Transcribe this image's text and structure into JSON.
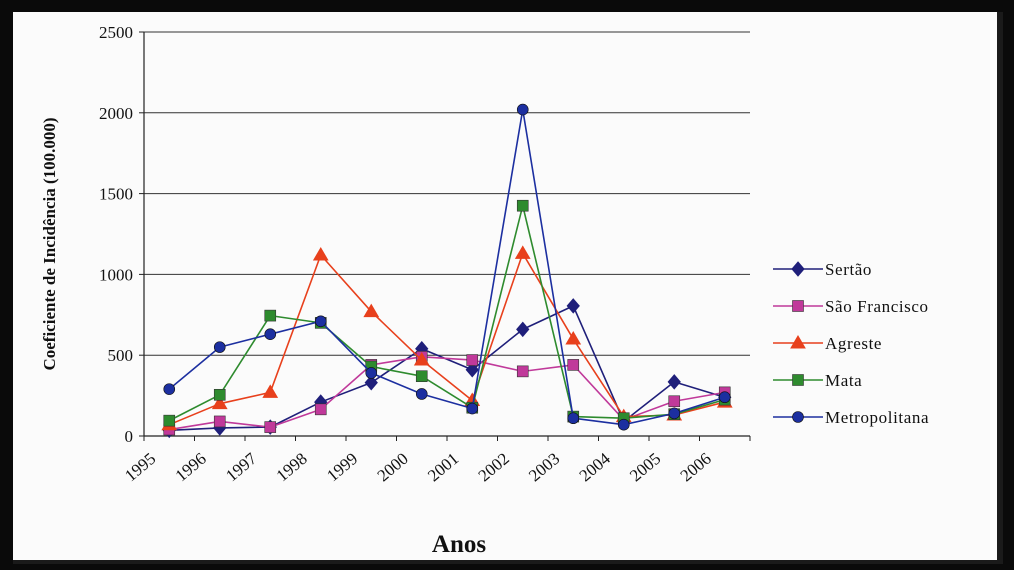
{
  "chart_data": {
    "type": "line",
    "title": "",
    "xlabel": "Anos",
    "ylabel": "Coeficiente de Incidência (100.000)",
    "ylim": [
      0,
      2500
    ],
    "yticks": [
      0,
      500,
      1000,
      1500,
      2000,
      2500
    ],
    "categories": [
      "1995",
      "1996",
      "1997",
      "1998",
      "1999",
      "2000",
      "2001",
      "2002",
      "2003",
      "2004",
      "2005",
      "2006"
    ],
    "grid": true,
    "legend_position": "right",
    "series": [
      {
        "name": "Sertão",
        "color": "#1f1f7a",
        "marker": "diamond",
        "values": [
          35,
          50,
          55,
          210,
          330,
          540,
          410,
          660,
          805,
          90,
          335,
          240
        ]
      },
      {
        "name": "São Francisco",
        "color": "#c0399a",
        "marker": "square",
        "values": [
          40,
          90,
          55,
          165,
          440,
          490,
          470,
          400,
          440,
          100,
          215,
          270
        ]
      },
      {
        "name": "Agreste",
        "color": "#e8401c",
        "marker": "triangle",
        "values": [
          70,
          200,
          270,
          1120,
          770,
          470,
          220,
          1130,
          600,
          120,
          130,
          210
        ]
      },
      {
        "name": "Mata",
        "color": "#2e8b2e",
        "marker": "square",
        "values": [
          95,
          255,
          745,
          700,
          430,
          370,
          175,
          1425,
          120,
          110,
          135,
          225
        ]
      },
      {
        "name": "Metropolitana",
        "color": "#1c2fa0",
        "marker": "circle",
        "values": [
          290,
          550,
          630,
          710,
          390,
          260,
          170,
          2020,
          110,
          70,
          140,
          240
        ]
      }
    ]
  }
}
